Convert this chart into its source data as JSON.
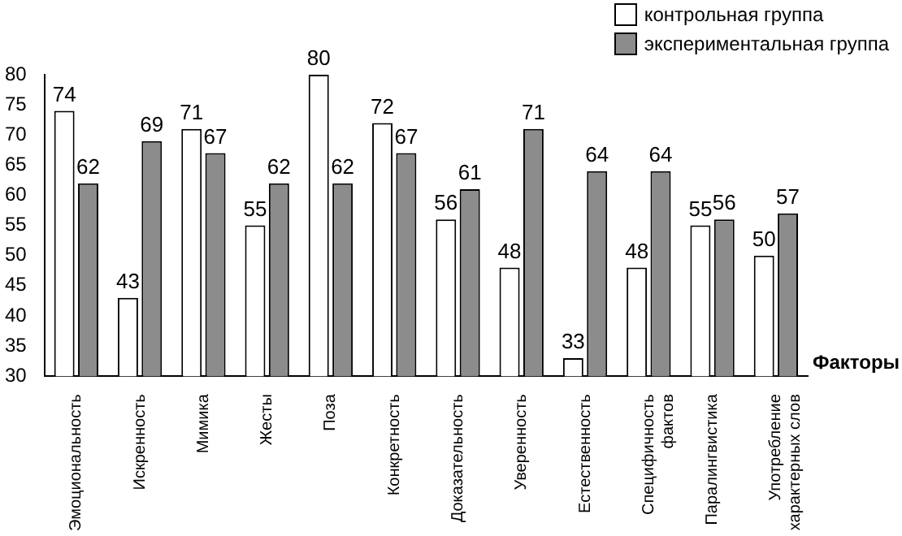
{
  "chart_data": {
    "type": "bar",
    "xlabel": "Факторы",
    "categories": [
      "Эмоциональность",
      "Искренность",
      "Мимика",
      "Жесты",
      "Поза",
      "Конкретность",
      "Доказательность",
      "Уверенность",
      "Естественность",
      "Специфичность фактов",
      "Паралингвистика",
      "Употребление характерных слов"
    ],
    "series": [
      {
        "name": "контрольная группа",
        "color": "#ffffff",
        "values": [
          74,
          43,
          71,
          55,
          80,
          72,
          56,
          48,
          33,
          48,
          55,
          50
        ]
      },
      {
        "name": "экспериментальная группа",
        "color": "#8c8c8c",
        "values": [
          62,
          69,
          67,
          62,
          62,
          67,
          61,
          71,
          64,
          64,
          56,
          57
        ]
      }
    ],
    "ylim": [
      30,
      80
    ],
    "yticks": [
      30,
      35,
      40,
      45,
      50,
      55,
      60,
      65,
      70,
      75,
      80
    ],
    "grid": false,
    "legend": "top right",
    "data_labels": true
  }
}
